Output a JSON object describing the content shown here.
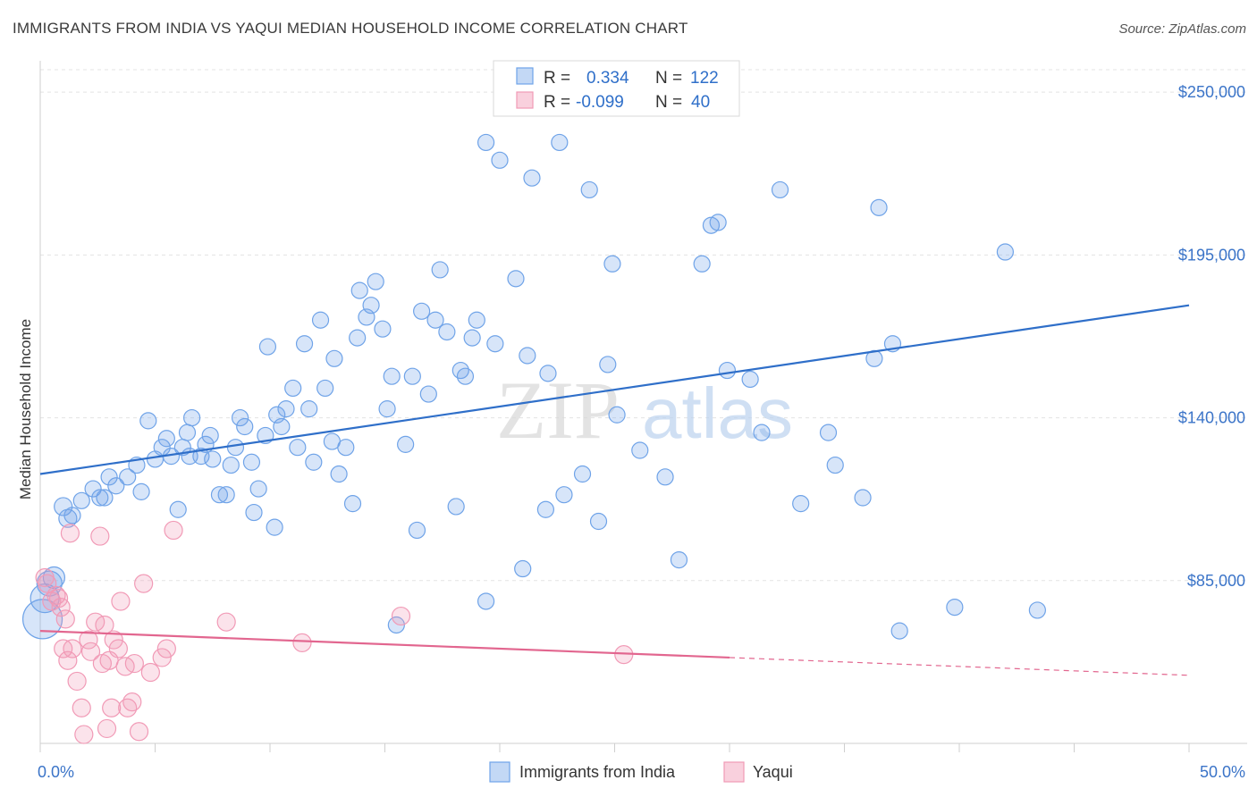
{
  "header": {
    "title": "IMMIGRANTS FROM INDIA VS YAQUI MEDIAN HOUSEHOLD INCOME CORRELATION CHART",
    "source": "Source: ZipAtlas.com"
  },
  "watermark": {
    "zip": "ZIP",
    "atlas": "atlas"
  },
  "legend": {
    "rows": [
      {
        "r_label": "R =",
        "r_value": "0.334",
        "n_label": "N =",
        "n_value": "122",
        "color": "#6fa3e8"
      },
      {
        "r_label": "R =",
        "r_value": "-0.099",
        "n_label": "N =",
        "n_value": "40",
        "color": "#f19ab6"
      }
    ]
  },
  "chart_data": {
    "type": "scatter",
    "title": "IMMIGRANTS FROM INDIA VS YAQUI MEDIAN HOUSEHOLD INCOME CORRELATION CHART",
    "xlabel": "",
    "ylabel": "Median Household Income",
    "xlim": [
      0,
      50
    ],
    "ylim": [
      30000,
      260000
    ],
    "x_tick_labels": [
      "0.0%",
      "50.0%"
    ],
    "y_ticks": [
      85000,
      140000,
      195000,
      250000
    ],
    "y_tick_labels": [
      "$85,000",
      "$140,000",
      "$195,000",
      "$250,000"
    ],
    "grid": true,
    "legend_position": "top-center",
    "series": [
      {
        "name": "Immigrants from India",
        "color": "#6fa3e8",
        "trend": {
          "x": [
            0,
            50
          ],
          "y": [
            121000,
            178000
          ],
          "dashed_from": null
        },
        "points": [
          [
            0.1,
            72000,
            22
          ],
          [
            0.2,
            79000,
            16
          ],
          [
            0.4,
            84000,
            14
          ],
          [
            0.6,
            86000,
            12
          ],
          [
            1.0,
            110000,
            10
          ],
          [
            1.2,
            106000,
            10
          ],
          [
            1.4,
            107000,
            9
          ],
          [
            1.8,
            112000,
            9
          ],
          [
            2.3,
            116000,
            9
          ],
          [
            2.8,
            113000,
            9
          ],
          [
            2.6,
            113000,
            9
          ],
          [
            3.3,
            117000,
            9
          ],
          [
            3.0,
            120000,
            9
          ],
          [
            3.8,
            120000,
            9
          ],
          [
            4.4,
            115000,
            9
          ],
          [
            4.2,
            124000,
            9
          ],
          [
            4.7,
            139000,
            9
          ],
          [
            5.5,
            133000,
            9
          ],
          [
            5.0,
            126000,
            9
          ],
          [
            5.3,
            130000,
            9
          ],
          [
            5.7,
            127000,
            9
          ],
          [
            6.0,
            109000,
            9
          ],
          [
            6.2,
            130000,
            9
          ],
          [
            6.4,
            135000,
            9
          ],
          [
            6.5,
            127000,
            9
          ],
          [
            6.6,
            140000,
            9
          ],
          [
            7.0,
            127000,
            9
          ],
          [
            7.2,
            131000,
            9
          ],
          [
            7.4,
            134000,
            9
          ],
          [
            7.5,
            126000,
            9
          ],
          [
            7.8,
            114000,
            9
          ],
          [
            8.1,
            114000,
            9
          ],
          [
            8.3,
            124000,
            9
          ],
          [
            8.5,
            130000,
            9
          ],
          [
            8.7,
            140000,
            9
          ],
          [
            8.9,
            137000,
            9
          ],
          [
            9.2,
            125000,
            9
          ],
          [
            9.3,
            108000,
            9
          ],
          [
            9.5,
            116000,
            9
          ],
          [
            9.8,
            134000,
            9
          ],
          [
            9.9,
            164000,
            9
          ],
          [
            10.2,
            103000,
            9
          ],
          [
            10.3,
            141000,
            9
          ],
          [
            10.5,
            137000,
            9
          ],
          [
            10.7,
            143000,
            9
          ],
          [
            11.0,
            150000,
            9
          ],
          [
            11.2,
            130000,
            9
          ],
          [
            11.5,
            165000,
            9
          ],
          [
            11.7,
            143000,
            9
          ],
          [
            11.9,
            125000,
            9
          ],
          [
            12.2,
            173000,
            9
          ],
          [
            12.4,
            150000,
            9
          ],
          [
            12.7,
            132000,
            9
          ],
          [
            12.8,
            160000,
            9
          ],
          [
            13.0,
            121000,
            9
          ],
          [
            13.3,
            130000,
            9
          ],
          [
            13.6,
            111000,
            9
          ],
          [
            13.8,
            167000,
            9
          ],
          [
            13.9,
            183000,
            9
          ],
          [
            14.2,
            174000,
            9
          ],
          [
            14.4,
            178000,
            9
          ],
          [
            14.6,
            186000,
            9
          ],
          [
            14.9,
            170000,
            9
          ],
          [
            15.1,
            143000,
            9
          ],
          [
            15.3,
            154000,
            9
          ],
          [
            15.5,
            70000,
            9
          ],
          [
            15.9,
            131000,
            9
          ],
          [
            16.2,
            154000,
            9
          ],
          [
            16.4,
            102000,
            9
          ],
          [
            16.6,
            176000,
            9
          ],
          [
            16.9,
            148000,
            9
          ],
          [
            17.2,
            173000,
            9
          ],
          [
            17.4,
            190000,
            9
          ],
          [
            17.7,
            169000,
            9
          ],
          [
            18.1,
            110000,
            9
          ],
          [
            18.3,
            156000,
            9
          ],
          [
            18.5,
            154000,
            9
          ],
          [
            18.8,
            167000,
            9
          ],
          [
            19.0,
            173000,
            9
          ],
          [
            19.4,
            233000,
            9
          ],
          [
            19.8,
            165000,
            9
          ],
          [
            20.0,
            227000,
            9
          ],
          [
            20.7,
            187000,
            9
          ],
          [
            21.0,
            89000,
            9
          ],
          [
            21.2,
            161000,
            9
          ],
          [
            21.4,
            221000,
            9
          ],
          [
            22.0,
            109000,
            9
          ],
          [
            22.1,
            155000,
            9
          ],
          [
            22.6,
            233000,
            9
          ],
          [
            22.8,
            114000,
            9
          ],
          [
            23.6,
            121000,
            9
          ],
          [
            23.9,
            217000,
            9
          ],
          [
            24.3,
            105000,
            9
          ],
          [
            24.7,
            158000,
            9
          ],
          [
            24.9,
            192000,
            9
          ],
          [
            25.1,
            141000,
            9
          ],
          [
            26.1,
            129000,
            9
          ],
          [
            27.2,
            120000,
            9
          ],
          [
            27.8,
            92000,
            9
          ],
          [
            28.8,
            192000,
            9
          ],
          [
            29.2,
            205000,
            9
          ],
          [
            29.5,
            206000,
            9
          ],
          [
            29.9,
            156000,
            9
          ],
          [
            30.9,
            153000,
            9
          ],
          [
            31.4,
            135000,
            9
          ],
          [
            32.2,
            217000,
            9
          ],
          [
            33.1,
            111000,
            9
          ],
          [
            34.3,
            135000,
            9
          ],
          [
            34.6,
            124000,
            9
          ],
          [
            35.8,
            113000,
            9
          ],
          [
            36.5,
            211000,
            9
          ],
          [
            37.1,
            165000,
            9
          ],
          [
            36.3,
            160000,
            9
          ],
          [
            37.4,
            68000,
            9
          ],
          [
            39.8,
            76000,
            9
          ],
          [
            42.0,
            196000,
            9
          ],
          [
            43.4,
            75000,
            9
          ],
          [
            19.4,
            78000,
            9
          ]
        ]
      },
      {
        "name": "Yaqui",
        "color": "#f19ab6",
        "trend": {
          "x": [
            0,
            50
          ],
          "y": [
            68000,
            53000
          ],
          "dashed_from": 30
        },
        "points": [
          [
            0.2,
            86000,
            10
          ],
          [
            0.3,
            84000,
            10
          ],
          [
            0.5,
            78000,
            10
          ],
          [
            0.7,
            80000,
            10
          ],
          [
            0.9,
            76000,
            10
          ],
          [
            1.1,
            72000,
            10
          ],
          [
            1.0,
            62000,
            10
          ],
          [
            1.2,
            58000,
            10
          ],
          [
            1.4,
            62000,
            10
          ],
          [
            1.6,
            51000,
            10
          ],
          [
            1.8,
            42000,
            10
          ],
          [
            1.9,
            33000,
            10
          ],
          [
            2.1,
            65000,
            10
          ],
          [
            2.2,
            61000,
            10
          ],
          [
            2.4,
            71000,
            10
          ],
          [
            2.6,
            100000,
            10
          ],
          [
            2.7,
            57000,
            10
          ],
          [
            2.8,
            70000,
            10
          ],
          [
            2.9,
            35000,
            10
          ],
          [
            3.0,
            58000,
            10
          ],
          [
            3.1,
            42000,
            10
          ],
          [
            3.2,
            65000,
            10
          ],
          [
            3.4,
            62000,
            10
          ],
          [
            3.5,
            78000,
            10
          ],
          [
            3.7,
            56000,
            10
          ],
          [
            3.8,
            42000,
            10
          ],
          [
            4.0,
            44000,
            10
          ],
          [
            4.3,
            34000,
            10
          ],
          [
            4.5,
            84000,
            10
          ],
          [
            4.8,
            54000,
            10
          ],
          [
            5.3,
            59000,
            10
          ],
          [
            5.5,
            62000,
            10
          ],
          [
            5.8,
            102000,
            10
          ],
          [
            8.1,
            71000,
            10
          ],
          [
            11.4,
            64000,
            10
          ],
          [
            15.7,
            73000,
            10
          ],
          [
            25.4,
            60000,
            10
          ],
          [
            0.8,
            79000,
            10
          ],
          [
            1.3,
            101000,
            10
          ],
          [
            4.1,
            57000,
            10
          ]
        ]
      }
    ]
  },
  "bottom_legend": [
    {
      "label": "Immigrants from India",
      "color": "#6fa3e8"
    },
    {
      "label": "Yaqui",
      "color": "#f19ab6"
    }
  ]
}
